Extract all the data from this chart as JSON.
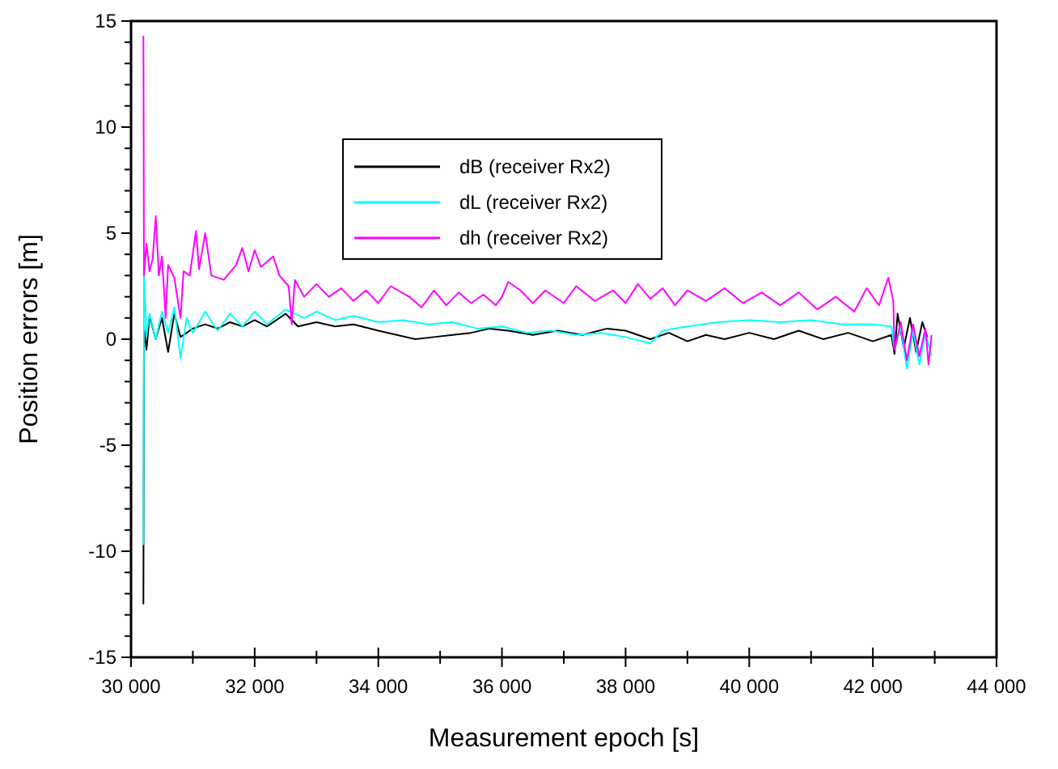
{
  "chart_data": {
    "type": "line",
    "xlabel": "Measurement epoch [s]",
    "ylabel": "Position errors [m]",
    "xlim": [
      30000,
      44000
    ],
    "xticks": [
      {
        "value": 30000,
        "label": "30 000"
      },
      {
        "value": 31000,
        "label": null
      },
      {
        "value": 32000,
        "label": "32 000"
      },
      {
        "value": 33000,
        "label": null
      },
      {
        "value": 34000,
        "label": "34 000"
      },
      {
        "value": 35000,
        "label": null
      },
      {
        "value": 36000,
        "label": "36 000"
      },
      {
        "value": 37000,
        "label": null
      },
      {
        "value": 38000,
        "label": "38 000"
      },
      {
        "value": 39000,
        "label": null
      },
      {
        "value": 40000,
        "label": "40 000"
      },
      {
        "value": 41000,
        "label": null
      },
      {
        "value": 42000,
        "label": "42 000"
      },
      {
        "value": 43000,
        "label": null
      },
      {
        "value": 44000,
        "label": "44 000"
      }
    ],
    "ylim": [
      -15,
      15
    ],
    "yticks": [
      -15,
      {
        "value": -14,
        "label": null
      },
      {
        "value": -13,
        "label": null
      },
      {
        "value": -12,
        "label": null
      },
      {
        "value": -11,
        "label": null
      },
      -10,
      {
        "value": -9,
        "label": null
      },
      {
        "value": -8,
        "label": null
      },
      {
        "value": -7,
        "label": null
      },
      {
        "value": -6,
        "label": null
      },
      -5,
      {
        "value": -4,
        "label": null
      },
      {
        "value": -3,
        "label": null
      },
      {
        "value": -2,
        "label": null
      },
      {
        "value": -1,
        "label": null
      },
      0,
      {
        "value": 1,
        "label": null
      },
      {
        "value": 2,
        "label": null
      },
      {
        "value": 3,
        "label": null
      },
      {
        "value": 4,
        "label": null
      },
      5,
      {
        "value": 6,
        "label": null
      },
      {
        "value": 7,
        "label": null
      },
      {
        "value": 8,
        "label": null
      },
      {
        "value": 9,
        "label": null
      },
      10,
      {
        "value": 11,
        "label": null
      },
      {
        "value": 12,
        "label": null
      },
      {
        "value": 13,
        "label": null
      },
      {
        "value": 14,
        "label": null
      },
      15
    ],
    "grid": false,
    "legend": "top left",
    "marker": "none",
    "line_style": "solid",
    "series": [
      {
        "name": "dB (receiver Rx2)",
        "color": "#000000",
        "x": [
          30200,
          30210,
          30250,
          30300,
          30400,
          30500,
          30600,
          30700,
          30800,
          31000,
          31200,
          31400,
          31600,
          31800,
          32000,
          32200,
          32500,
          32700,
          33000,
          33300,
          33600,
          34000,
          34300,
          34600,
          34900,
          35200,
          35500,
          35800,
          36100,
          36500,
          36900,
          37300,
          37700,
          38000,
          38400,
          38700,
          39000,
          39300,
          39600,
          40000,
          40400,
          40800,
          41200,
          41600,
          42000,
          42300,
          42350,
          42400,
          42500,
          42600,
          42700,
          42800,
          42880
        ],
        "values": [
          -12.5,
          0.5,
          -0.5,
          1.1,
          0.0,
          1.0,
          -0.6,
          1.2,
          0.1,
          0.5,
          0.7,
          0.5,
          0.8,
          0.6,
          0.9,
          0.6,
          1.2,
          0.6,
          0.8,
          0.6,
          0.7,
          0.4,
          0.2,
          0.0,
          0.1,
          0.2,
          0.3,
          0.5,
          0.4,
          0.2,
          0.4,
          0.2,
          0.5,
          0.4,
          0.0,
          0.3,
          -0.1,
          0.2,
          0.0,
          0.3,
          0.0,
          0.4,
          0.0,
          0.3,
          -0.1,
          0.2,
          -0.7,
          1.2,
          -0.4,
          1.0,
          -0.6,
          0.8,
          0.1
        ]
      },
      {
        "name": "dL (receiver Rx2)",
        "color": "#00ffff",
        "x": [
          30200,
          30210,
          30250,
          30300,
          30400,
          30500,
          30600,
          30700,
          30800,
          30900,
          31000,
          31200,
          31400,
          31600,
          31800,
          32000,
          32200,
          32500,
          32800,
          33000,
          33300,
          33600,
          34000,
          34400,
          34800,
          35200,
          35600,
          36000,
          36400,
          36800,
          37200,
          37600,
          38000,
          38400,
          38600,
          39000,
          39500,
          40000,
          40500,
          41000,
          41500,
          42000,
          42300,
          42350,
          42450,
          42550,
          42650,
          42750,
          42850,
          42950
        ],
        "values": [
          -9.7,
          3.0,
          0.2,
          1.2,
          0.0,
          1.3,
          0.3,
          1.5,
          -0.9,
          1.0,
          0.3,
          1.3,
          0.4,
          1.2,
          0.6,
          1.3,
          0.7,
          1.4,
          1.0,
          1.3,
          0.9,
          1.1,
          0.8,
          0.9,
          0.7,
          0.8,
          0.5,
          0.6,
          0.3,
          0.4,
          0.2,
          0.3,
          0.1,
          -0.2,
          0.4,
          0.6,
          0.8,
          0.9,
          0.8,
          0.9,
          0.7,
          0.7,
          0.6,
          -0.5,
          0.6,
          -1.4,
          0.4,
          -1.2,
          0.3,
          -0.8
        ]
      },
      {
        "name": "dh (receiver Rx2)",
        "color": "#ff00ff",
        "x": [
          30200,
          30210,
          30250,
          30300,
          30350,
          30400,
          30450,
          30500,
          30560,
          30600,
          30700,
          30800,
          30850,
          30950,
          31050,
          31100,
          31200,
          31300,
          31500,
          31700,
          31800,
          31900,
          32000,
          32100,
          32300,
          32400,
          32550,
          32600,
          32650,
          32800,
          33000,
          33200,
          33400,
          33600,
          33800,
          34000,
          34200,
          34500,
          34700,
          34900,
          35100,
          35300,
          35500,
          35700,
          35900,
          36000,
          36100,
          36300,
          36500,
          36700,
          37000,
          37200,
          37500,
          37800,
          38000,
          38200,
          38400,
          38600,
          38800,
          39000,
          39300,
          39600,
          39900,
          40200,
          40500,
          40800,
          41100,
          41400,
          41700,
          41900,
          42100,
          42250,
          42330,
          42350,
          42450,
          42550,
          42650,
          42750,
          42850,
          42900,
          42950
        ],
        "values": [
          14.3,
          3.0,
          4.5,
          3.2,
          3.8,
          5.8,
          3.0,
          3.9,
          1.0,
          3.5,
          2.9,
          1.0,
          3.2,
          3.0,
          5.1,
          3.3,
          5.0,
          3.0,
          2.8,
          3.5,
          4.3,
          3.2,
          4.2,
          3.4,
          3.9,
          3.0,
          2.5,
          0.7,
          2.8,
          2.0,
          2.6,
          2.0,
          2.4,
          1.8,
          2.3,
          1.7,
          2.5,
          2.0,
          1.5,
          2.3,
          1.6,
          2.2,
          1.7,
          2.1,
          1.6,
          2.0,
          2.7,
          2.3,
          1.7,
          2.3,
          1.7,
          2.5,
          1.8,
          2.3,
          1.7,
          2.6,
          1.9,
          2.4,
          1.6,
          2.3,
          1.8,
          2.4,
          1.7,
          2.2,
          1.6,
          2.2,
          1.4,
          2.0,
          1.3,
          2.4,
          1.6,
          2.9,
          1.8,
          -0.5,
          0.8,
          -1.0,
          0.7,
          -0.8,
          0.5,
          -1.2,
          0.2
        ]
      }
    ]
  }
}
